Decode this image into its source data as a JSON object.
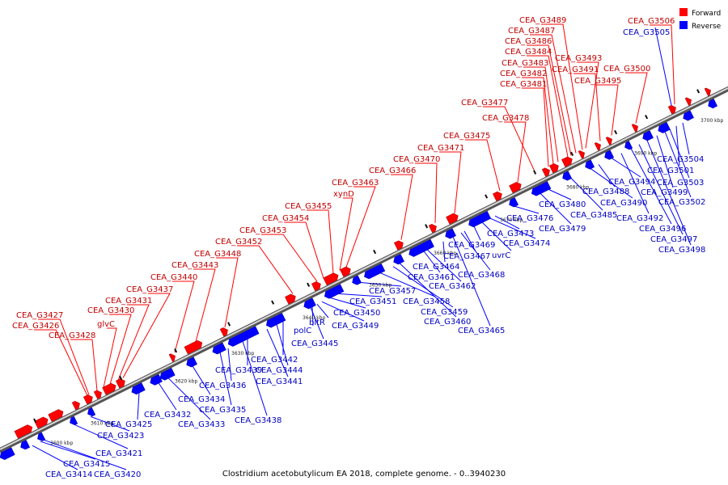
{
  "caption": "Clostridium acetobutylicum EA 2018, complete genome. - 0..3940230",
  "legend": {
    "forward": {
      "label": "Forward",
      "color": "#ff0000"
    },
    "reverse": {
      "label": "Reverse",
      "color": "#0000ff"
    }
  },
  "axis": {
    "ticks": [
      "3600 kbp",
      "3610 kbp",
      "3620 kbp",
      "3630 kbp",
      "3640 kbp",
      "3650 kbp",
      "3660 kbp",
      "3670 kbp",
      "3680 kbp",
      "3690 kbp",
      "3700 kbp"
    ]
  },
  "forward_genes": [
    "CEA_G3427",
    "CEA_G3426",
    "CEA_G3428",
    "glvC",
    "CEA_G3430",
    "CEA_G3431",
    "CEA_G3437",
    "CEA_G3440",
    "CEA_G3443",
    "CEA_G3448",
    "CEA_G3452",
    "CEA_G3453",
    "CEA_G3454",
    "CEA_G3455",
    "xynD",
    "CEA_G3463",
    "CEA_G3466",
    "CEA_G3470",
    "CEA_G3471",
    "CEA_G3475",
    "CEA_G3478",
    "CEA_G3477",
    "CEA_G3481",
    "CEA_G3482",
    "CEA_G3483",
    "CEA_G3484",
    "CEA_G3486",
    "CEA_G3487",
    "CEA_G3489",
    "CEA_G3493",
    "CEA_G3491",
    "CEA_G3495",
    "CEA_G3500",
    "CEA_G3506"
  ],
  "reverse_genes": [
    "CEA_G3414",
    "CEA_G3420",
    "CEA_G3415",
    "CEA_G3421",
    "CEA_G3423",
    "CEA_G3425",
    "CEA_G3432",
    "CEA_G3433",
    "CEA_G3434",
    "CEA_G3435",
    "CEA_G3438",
    "CEA_G3436",
    "CEA_G3439",
    "CEA_G3441",
    "CEA_G3442",
    "CEA_G3444",
    "CEA_G3445",
    "polC",
    "bltR",
    "CEA_G3449",
    "CEA_G3450",
    "CEA_G3451",
    "CEA_G3457",
    "CEA_G3458",
    "CEA_G3459",
    "CEA_G3460",
    "CEA_G3461",
    "CEA_G3462",
    "CEA_G3464",
    "CEA_G3465",
    "CEA_G3468",
    "CEA_G3467",
    "CEA_G3469",
    "uvrC",
    "CEA_G3474",
    "CEA_G3473",
    "CEA_G3476",
    "CEA_G3479",
    "CEA_G3480",
    "CEA_G3485",
    "CEA_G3490",
    "CEA_G3488",
    "CEA_G3494",
    "CEA_G3492",
    "CEA_G3496",
    "CEA_G3497",
    "CEA_G3498",
    "CEA_G3499",
    "CEA_G3502",
    "CEA_G3503",
    "CEA_G3501",
    "CEA_G3504",
    "CEA_G3505"
  ]
}
